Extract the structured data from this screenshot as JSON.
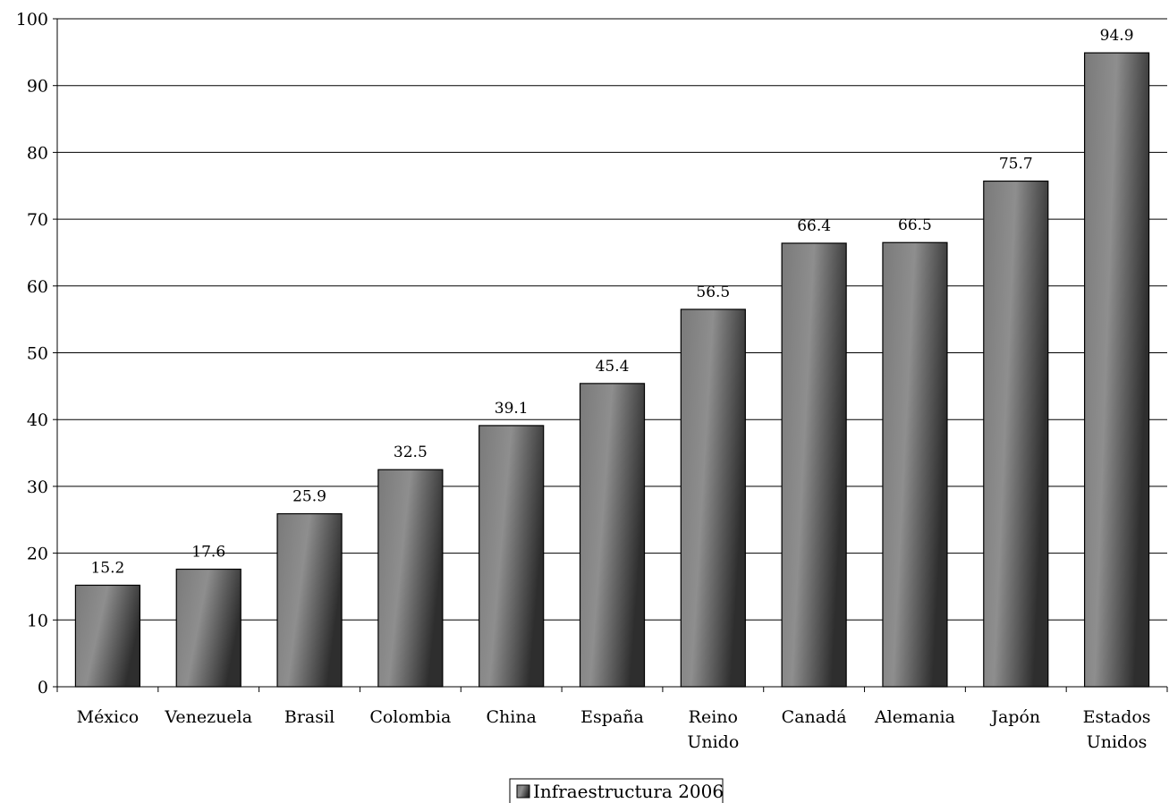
{
  "chart_data": {
    "type": "bar",
    "categories": [
      [
        "México"
      ],
      [
        "Venezuela"
      ],
      [
        "Brasil"
      ],
      [
        "Colombia"
      ],
      [
        "China"
      ],
      [
        "España"
      ],
      [
        "Reino",
        "Unido"
      ],
      [
        "Canadá"
      ],
      [
        "Alemania"
      ],
      [
        "Japón"
      ],
      [
        "Estados",
        "Unidos"
      ]
    ],
    "series": [
      {
        "name": "Infraestructura 2006",
        "values": [
          15.2,
          17.6,
          25.9,
          32.5,
          39.1,
          45.4,
          56.5,
          66.4,
          66.5,
          75.7,
          94.9
        ],
        "labels": [
          "15.2",
          "17.6",
          "25.9",
          "32.5",
          "39.1",
          "45.4",
          "56.5",
          "66.4",
          "66.5",
          "75.7",
          "94.9"
        ]
      }
    ],
    "ylim": [
      0,
      100
    ],
    "yticks": [
      "0",
      "10",
      "20",
      "30",
      "40",
      "50",
      "60",
      "70",
      "80",
      "90",
      "100"
    ],
    "grid": true,
    "legend_position": "bottom-center",
    "colors": {
      "bar_light": "#8c8c8c",
      "bar_dark": "#3a3a3a",
      "grid": "#000000"
    }
  }
}
